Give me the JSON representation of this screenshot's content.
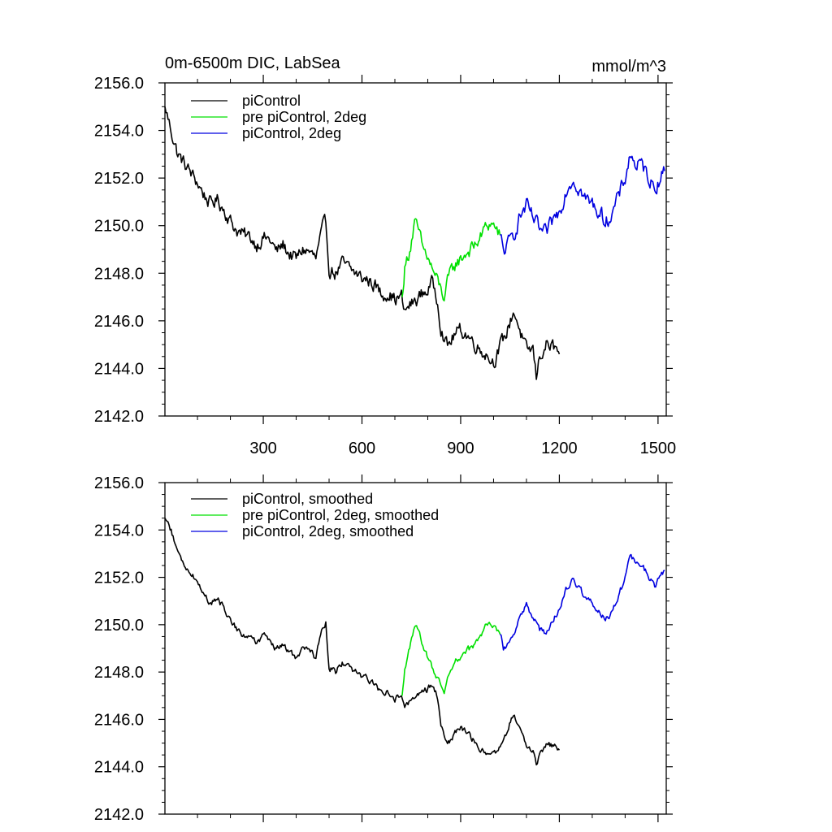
{
  "chart_data": [
    {
      "type": "line",
      "title": "0m-6500m DIC, LabSea",
      "units": "mmol/m^3",
      "xlim": [
        1,
        1525
      ],
      "ylim": [
        2142.0,
        2156.0
      ],
      "xticks": [
        300,
        600,
        900,
        1200,
        1500
      ],
      "yticks": [
        "2142.0",
        "2144.0",
        "2146.0",
        "2148.0",
        "2150.0",
        "2152.0",
        "2154.0",
        "2156.0"
      ],
      "show_xtick_labels": true,
      "legend_position": "top-left",
      "series": [
        {
          "name": "piControl",
          "color": "#000000",
          "noise": 0.55,
          "points": [
            [
              1,
              2155.0
            ],
            [
              20,
              2154.0
            ],
            [
              40,
              2153.0
            ],
            [
              60,
              2152.6
            ],
            [
              80,
              2152.2
            ],
            [
              100,
              2151.8
            ],
            [
              120,
              2151.3
            ],
            [
              140,
              2150.9
            ],
            [
              160,
              2151.1
            ],
            [
              180,
              2150.7
            ],
            [
              200,
              2150.2
            ],
            [
              220,
              2149.8
            ],
            [
              240,
              2149.6
            ],
            [
              260,
              2149.5
            ],
            [
              280,
              2149.2
            ],
            [
              300,
              2149.5
            ],
            [
              320,
              2149.4
            ],
            [
              340,
              2148.9
            ],
            [
              360,
              2149.2
            ],
            [
              380,
              2148.8
            ],
            [
              400,
              2148.6
            ],
            [
              420,
              2149.0
            ],
            [
              440,
              2148.9
            ],
            [
              460,
              2148.6
            ],
            [
              480,
              2149.8
            ],
            [
              490,
              2150.1
            ],
            [
              500,
              2148.2
            ],
            [
              520,
              2148.0
            ],
            [
              540,
              2148.4
            ],
            [
              560,
              2148.2
            ],
            [
              580,
              2148.0
            ],
            [
              600,
              2147.8
            ],
            [
              620,
              2147.7
            ],
            [
              640,
              2147.5
            ],
            [
              660,
              2147.1
            ],
            [
              680,
              2147.2
            ],
            [
              700,
              2146.9
            ],
            [
              720,
              2147.0
            ],
            [
              730,
              2146.3
            ],
            [
              740,
              2146.6
            ],
            [
              760,
              2146.8
            ],
            [
              780,
              2147.1
            ],
            [
              800,
              2147.3
            ],
            [
              815,
              2147.6
            ],
            [
              830,
              2146.9
            ],
            [
              840,
              2145.8
            ],
            [
              850,
              2145.3
            ],
            [
              860,
              2144.9
            ],
            [
              880,
              2145.4
            ],
            [
              900,
              2145.6
            ],
            [
              920,
              2145.4
            ],
            [
              940,
              2145.1
            ],
            [
              960,
              2144.8
            ],
            [
              980,
              2144.6
            ],
            [
              990,
              2144.4
            ],
            [
              1000,
              2144.3
            ],
            [
              1020,
              2144.9
            ],
            [
              1040,
              2145.5
            ],
            [
              1060,
              2146.4
            ],
            [
              1070,
              2146.1
            ],
            [
              1080,
              2145.6
            ],
            [
              1100,
              2144.7
            ],
            [
              1120,
              2144.8
            ],
            [
              1130,
              2143.6
            ],
            [
              1140,
              2144.5
            ],
            [
              1160,
              2145.0
            ],
            [
              1180,
              2144.9
            ],
            [
              1200,
              2144.6
            ]
          ]
        },
        {
          "name": "pre piControl, 2deg",
          "color": "#00e000",
          "noise": 0.55,
          "points": [
            [
              722,
              2147.0
            ],
            [
              730,
              2148.2
            ],
            [
              745,
              2149.0
            ],
            [
              760,
              2150.1
            ],
            [
              775,
              2149.6
            ],
            [
              785,
              2149.0
            ],
            [
              795,
              2148.8
            ],
            [
              810,
              2148.3
            ],
            [
              825,
              2147.8
            ],
            [
              840,
              2147.3
            ],
            [
              850,
              2147.0
            ],
            [
              860,
              2147.6
            ],
            [
              870,
              2148.0
            ],
            [
              885,
              2148.4
            ],
            [
              900,
              2148.6
            ],
            [
              920,
              2148.9
            ],
            [
              940,
              2149.1
            ],
            [
              960,
              2149.5
            ],
            [
              975,
              2149.9
            ],
            [
              990,
              2150.1
            ],
            [
              1000,
              2150.0
            ],
            [
              1010,
              2149.8
            ],
            [
              1020,
              2149.6
            ]
          ]
        },
        {
          "name": "piControl, 2deg",
          "color": "#0000e0",
          "noise": 0.6,
          "points": [
            [
              1020,
              2149.6
            ],
            [
              1030,
              2148.9
            ],
            [
              1045,
              2149.2
            ],
            [
              1060,
              2149.6
            ],
            [
              1080,
              2150.4
            ],
            [
              1100,
              2150.8
            ],
            [
              1120,
              2150.3
            ],
            [
              1140,
              2149.8
            ],
            [
              1160,
              2149.6
            ],
            [
              1180,
              2150.2
            ],
            [
              1200,
              2150.6
            ],
            [
              1220,
              2151.5
            ],
            [
              1240,
              2152.0
            ],
            [
              1260,
              2151.6
            ],
            [
              1280,
              2151.1
            ],
            [
              1300,
              2150.9
            ],
            [
              1320,
              2150.6
            ],
            [
              1340,
              2150.2
            ],
            [
              1360,
              2150.5
            ],
            [
              1380,
              2151.2
            ],
            [
              1400,
              2152.0
            ],
            [
              1415,
              2153.0
            ],
            [
              1430,
              2152.6
            ],
            [
              1450,
              2152.5
            ],
            [
              1470,
              2152.1
            ],
            [
              1490,
              2151.6
            ],
            [
              1505,
              2152.0
            ],
            [
              1520,
              2152.3
            ]
          ]
        }
      ]
    },
    {
      "type": "line",
      "title": "",
      "units": "",
      "xlim": [
        1,
        1525
      ],
      "ylim": [
        2142.0,
        2156.0
      ],
      "xticks": [
        300,
        600,
        900,
        1200,
        1500
      ],
      "yticks": [
        "2142.0",
        "2144.0",
        "2146.0",
        "2148.0",
        "2150.0",
        "2152.0",
        "2154.0",
        "2156.0"
      ],
      "show_xtick_labels": false,
      "legend_position": "top-left",
      "series": [
        {
          "name": "piControl, smoothed",
          "color": "#000000",
          "noise": 0.25,
          "points": [
            [
              1,
              2154.5
            ],
            [
              20,
              2154.0
            ],
            [
              40,
              2153.0
            ],
            [
              60,
              2152.5
            ],
            [
              80,
              2152.2
            ],
            [
              100,
              2151.8
            ],
            [
              120,
              2151.3
            ],
            [
              140,
              2150.9
            ],
            [
              160,
              2151.1
            ],
            [
              180,
              2150.7
            ],
            [
              200,
              2150.2
            ],
            [
              220,
              2149.8
            ],
            [
              240,
              2149.6
            ],
            [
              260,
              2149.5
            ],
            [
              280,
              2149.2
            ],
            [
              300,
              2149.5
            ],
            [
              320,
              2149.4
            ],
            [
              340,
              2148.9
            ],
            [
              360,
              2149.2
            ],
            [
              380,
              2148.8
            ],
            [
              400,
              2148.6
            ],
            [
              420,
              2149.0
            ],
            [
              440,
              2148.9
            ],
            [
              460,
              2148.6
            ],
            [
              480,
              2149.8
            ],
            [
              490,
              2150.1
            ],
            [
              500,
              2148.2
            ],
            [
              520,
              2148.0
            ],
            [
              540,
              2148.4
            ],
            [
              560,
              2148.2
            ],
            [
              580,
              2148.0
            ],
            [
              600,
              2147.8
            ],
            [
              620,
              2147.7
            ],
            [
              640,
              2147.5
            ],
            [
              660,
              2147.1
            ],
            [
              680,
              2147.2
            ],
            [
              700,
              2146.9
            ],
            [
              720,
              2147.0
            ],
            [
              730,
              2146.6
            ],
            [
              740,
              2146.7
            ],
            [
              760,
              2146.8
            ],
            [
              780,
              2147.1
            ],
            [
              800,
              2147.3
            ],
            [
              815,
              2147.5
            ],
            [
              830,
              2146.9
            ],
            [
              840,
              2145.8
            ],
            [
              850,
              2145.3
            ],
            [
              860,
              2144.9
            ],
            [
              880,
              2145.4
            ],
            [
              900,
              2145.6
            ],
            [
              920,
              2145.4
            ],
            [
              940,
              2145.1
            ],
            [
              960,
              2144.8
            ],
            [
              980,
              2144.6
            ],
            [
              990,
              2144.4
            ],
            [
              1000,
              2144.5
            ],
            [
              1020,
              2144.9
            ],
            [
              1040,
              2145.5
            ],
            [
              1060,
              2146.2
            ],
            [
              1070,
              2146.0
            ],
            [
              1080,
              2145.6
            ],
            [
              1100,
              2144.7
            ],
            [
              1120,
              2144.8
            ],
            [
              1130,
              2144.0
            ],
            [
              1140,
              2144.5
            ],
            [
              1160,
              2145.0
            ],
            [
              1180,
              2144.9
            ],
            [
              1200,
              2144.7
            ]
          ]
        },
        {
          "name": "pre piControl, 2deg, smoothed",
          "color": "#00e000",
          "noise": 0.25,
          "points": [
            [
              722,
              2147.0
            ],
            [
              730,
              2148.2
            ],
            [
              745,
              2149.0
            ],
            [
              760,
              2150.0
            ],
            [
              775,
              2149.6
            ],
            [
              785,
              2149.0
            ],
            [
              795,
              2148.8
            ],
            [
              810,
              2148.3
            ],
            [
              825,
              2147.9
            ],
            [
              840,
              2147.4
            ],
            [
              850,
              2147.0
            ],
            [
              860,
              2147.6
            ],
            [
              870,
              2148.0
            ],
            [
              885,
              2148.4
            ],
            [
              900,
              2148.6
            ],
            [
              920,
              2148.9
            ],
            [
              940,
              2149.1
            ],
            [
              960,
              2149.5
            ],
            [
              975,
              2149.9
            ],
            [
              990,
              2150.1
            ],
            [
              1000,
              2150.0
            ],
            [
              1010,
              2149.8
            ],
            [
              1020,
              2149.6
            ]
          ]
        },
        {
          "name": "piControl, 2deg, smoothed",
          "color": "#0000e0",
          "noise": 0.25,
          "points": [
            [
              1020,
              2149.6
            ],
            [
              1030,
              2149.0
            ],
            [
              1045,
              2149.2
            ],
            [
              1060,
              2149.6
            ],
            [
              1080,
              2150.4
            ],
            [
              1100,
              2150.8
            ],
            [
              1120,
              2150.3
            ],
            [
              1140,
              2149.8
            ],
            [
              1160,
              2149.6
            ],
            [
              1180,
              2150.2
            ],
            [
              1200,
              2150.6
            ],
            [
              1220,
              2151.5
            ],
            [
              1240,
              2152.0
            ],
            [
              1260,
              2151.6
            ],
            [
              1280,
              2151.1
            ],
            [
              1300,
              2150.9
            ],
            [
              1320,
              2150.6
            ],
            [
              1340,
              2150.2
            ],
            [
              1360,
              2150.5
            ],
            [
              1380,
              2151.2
            ],
            [
              1400,
              2152.0
            ],
            [
              1415,
              2153.0
            ],
            [
              1430,
              2152.6
            ],
            [
              1450,
              2152.5
            ],
            [
              1470,
              2152.1
            ],
            [
              1490,
              2151.6
            ],
            [
              1505,
              2152.0
            ],
            [
              1520,
              2152.3
            ]
          ]
        }
      ]
    }
  ]
}
